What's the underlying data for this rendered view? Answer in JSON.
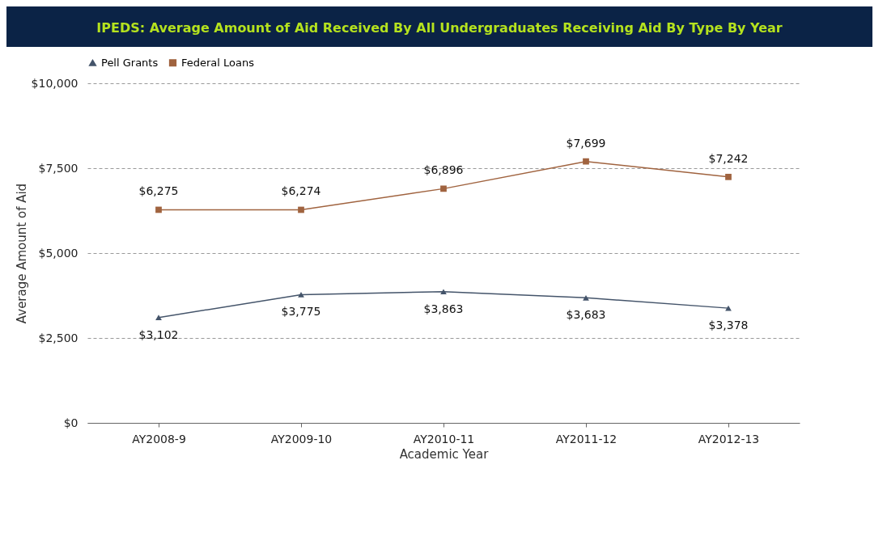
{
  "chart_data": {
    "type": "line",
    "title": "IPEDS: Average Amount of Aid Received By All Undergraduates Receiving Aid By Type By Year",
    "xlabel": "Academic Year",
    "ylabel": "Average Amount of Aid",
    "categories": [
      "AY2008-9",
      "AY2009-10",
      "AY2010-11",
      "AY2011-12",
      "AY2012-13"
    ],
    "series": [
      {
        "name": "Pell Grants",
        "color": "#44546a",
        "marker": "triangle",
        "values": [
          3102,
          3775,
          3863,
          3683,
          3378
        ],
        "value_labels": [
          "$3,102",
          "$3,775",
          "$3,863",
          "$3,683",
          "$3,378"
        ]
      },
      {
        "name": "Federal Loans",
        "color": "#a0633f",
        "marker": "square",
        "values": [
          6275,
          6274,
          6896,
          7699,
          7242
        ],
        "value_labels": [
          "$6,275",
          "$6,274",
          "$6,896",
          "$7,699",
          "$7,242"
        ]
      }
    ],
    "ylim": [
      0,
      10000
    ],
    "yticks": [
      {
        "value": 0,
        "label": "$0"
      },
      {
        "value": 2500,
        "label": "$2,500"
      },
      {
        "value": 5000,
        "label": "$5,000"
      },
      {
        "value": 7500,
        "label": "$7,500"
      },
      {
        "value": 10000,
        "label": "$10,000"
      }
    ],
    "grid": "y",
    "legend": "top",
    "line_style": "solid"
  }
}
